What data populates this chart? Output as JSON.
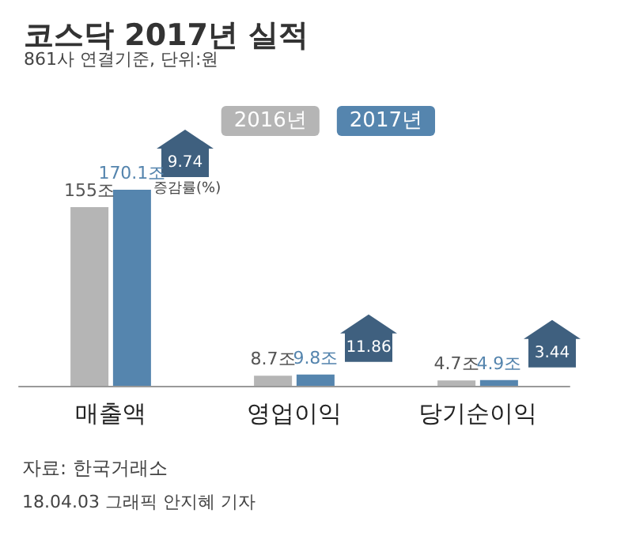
{
  "chart_data": {
    "type": "bar",
    "title": "코스닥 2017년 실적",
    "subtitle": "861사 연결기준, 단위:원",
    "categories": [
      "매출액",
      "영업이익",
      "당기순이익"
    ],
    "series": [
      {
        "name": "2016년",
        "color": "#b5b5b5",
        "values": [
          155,
          8.7,
          4.7
        ],
        "value_labels": [
          "155조",
          "8.7조",
          "4.7조"
        ]
      },
      {
        "name": "2017년",
        "color": "#5585ae",
        "values": [
          170.1,
          9.8,
          4.9
        ],
        "value_labels": [
          "170.1조",
          "9.8조",
          "4.9조"
        ]
      }
    ],
    "legend": "top right",
    "grid": false,
    "annotations": [
      "9.74",
      "11.86",
      "3.44",
      "증감률(%)",
      "자료: 한국거래소",
      "18.04.03 그래픽 안지혜 기자"
    ]
  }
}
